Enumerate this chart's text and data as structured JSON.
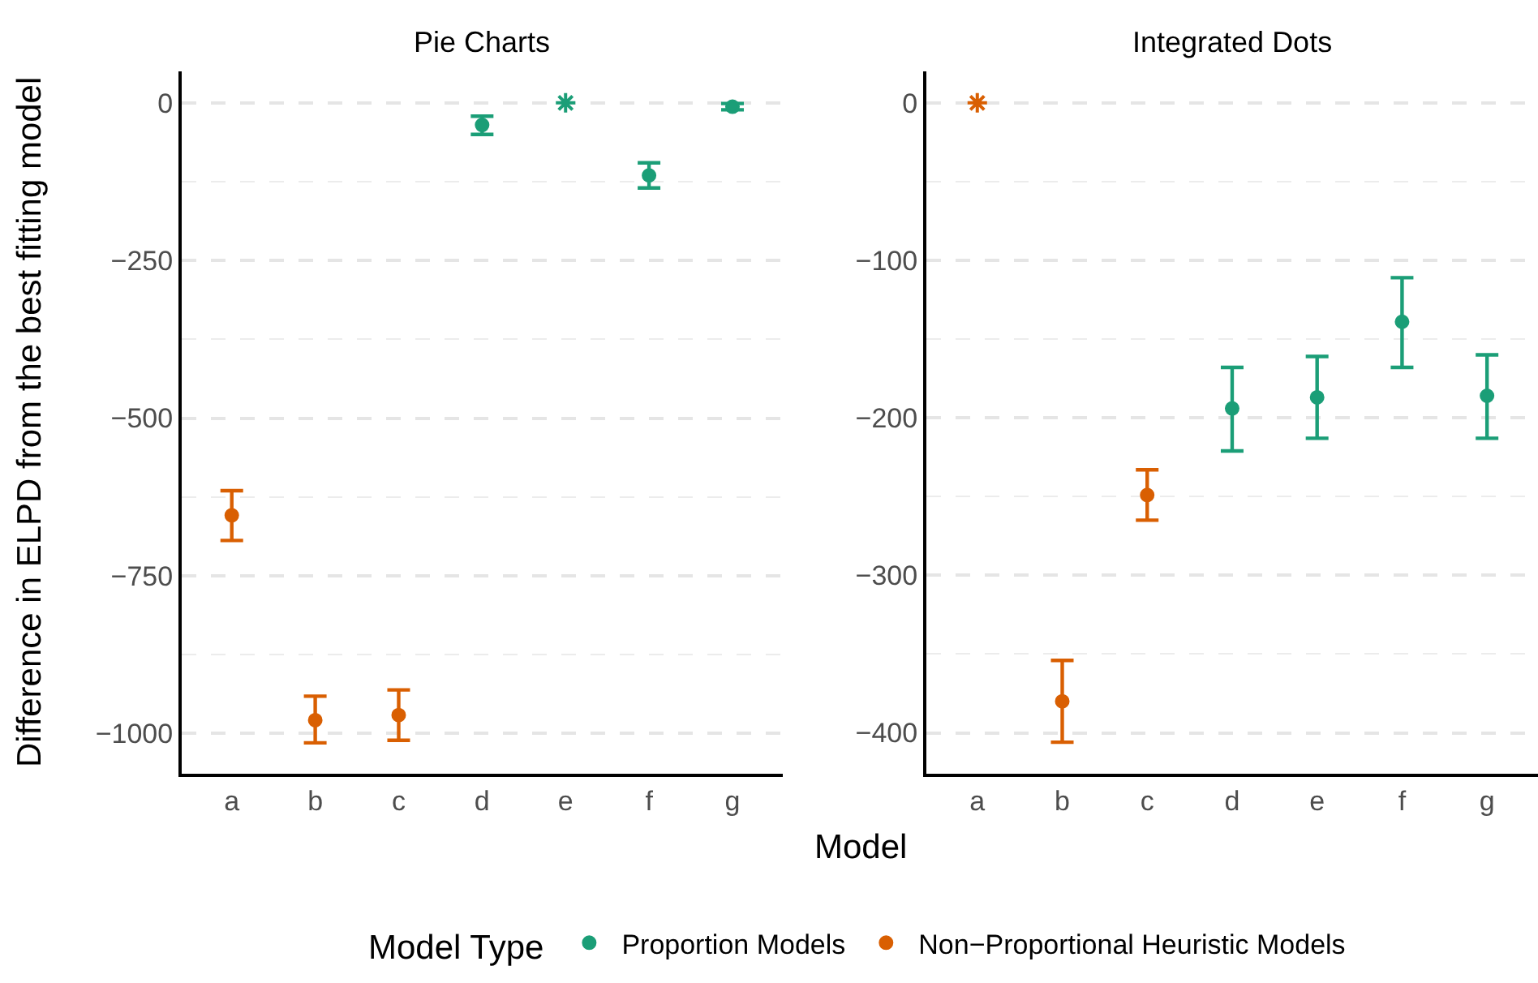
{
  "chart_data": [
    {
      "type": "scatter",
      "title": "Pie Charts",
      "xlabel": "Model",
      "ylabel": "Difference in ELPD from the best fitting model",
      "legend_title": "Model Type",
      "legend": "bottom",
      "grid": "y",
      "marker": "circle",
      "categories": [
        "a",
        "b",
        "c",
        "d",
        "e",
        "f",
        "g"
      ],
      "ylim": [
        -1064,
        50
      ],
      "yticks": [
        0,
        -250,
        -500,
        -750,
        -1000
      ],
      "series": [
        {
          "name": "Proportion Models",
          "color": "#1b9e77",
          "values": [
            null,
            null,
            null,
            -35,
            null,
            -115,
            -6
          ],
          "errors": [
            null,
            null,
            null,
            [
              -50,
              -21
            ],
            null,
            [
              -135,
              -95
            ],
            [
              -11,
              -1
            ]
          ]
        },
        {
          "name": "Non−Proportional Heuristic Models",
          "color": "#d95f02",
          "values": [
            -654,
            -979,
            -971,
            null,
            null,
            null,
            null
          ],
          "errors": [
            [
              -694,
              -615
            ],
            [
              -1015,
              -941
            ],
            [
              -1011,
              -931
            ],
            null,
            null,
            null,
            null
          ]
        },
        {
          "color": "#1b9e77",
          "marker": "cross",
          "values": [
            null,
            null,
            null,
            null,
            0,
            null,
            null
          ]
        }
      ]
    },
    {
      "type": "scatter",
      "title": "Integrated Dots",
      "legend": "bottom",
      "grid": "y",
      "marker": "circle",
      "categories": [
        "a",
        "b",
        "c",
        "d",
        "e",
        "f",
        "g"
      ],
      "ylim": [
        -426,
        20
      ],
      "yticks": [
        0,
        -100,
        -200,
        -300,
        -400
      ],
      "series": [
        {
          "name": "Proportion Models",
          "color": "#1b9e77",
          "values": [
            null,
            null,
            null,
            -194,
            -187,
            -139,
            -186
          ],
          "errors": [
            null,
            null,
            null,
            [
              -221,
              -168
            ],
            [
              -213,
              -161
            ],
            [
              -168,
              -111
            ],
            [
              -213,
              -160
            ]
          ]
        },
        {
          "name": "Non−Proportional Heuristic Models",
          "color": "#d95f02",
          "values": [
            null,
            -380,
            -249,
            null,
            null,
            null,
            null
          ],
          "errors": [
            null,
            [
              -406,
              -354
            ],
            [
              -265,
              -233
            ],
            null,
            null,
            null,
            null
          ]
        },
        {
          "color": "#d95f02",
          "marker": "cross",
          "values": [
            0,
            null,
            null,
            null,
            null,
            null,
            null
          ]
        }
      ]
    }
  ]
}
